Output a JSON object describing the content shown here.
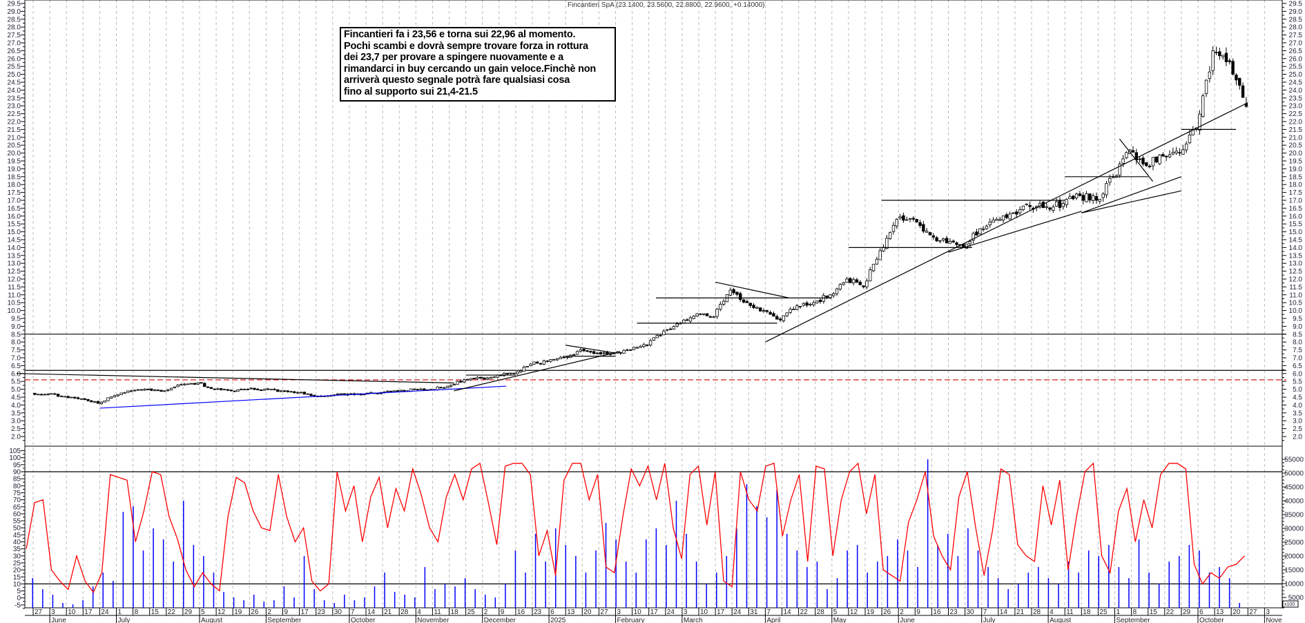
{
  "chart_data": [
    {
      "type": "candlestick",
      "title": "Fincantieri SpA (23.1400, 23.5600, 22.8800, 22.9600, +0.14000)",
      "ylim": [
        2.0,
        29.5
      ],
      "y_tick_step": 0.5,
      "grid": "vertical dashed",
      "weekly_close": [
        4.7,
        4.55,
        4.4,
        4.1,
        4.6,
        4.9,
        5.0,
        4.9,
        5.3,
        5.4,
        5.0,
        4.9,
        5.0,
        5.0,
        4.9,
        4.8,
        4.55,
        4.6,
        4.7,
        4.7,
        4.8,
        4.9,
        5.0,
        5.0,
        5.2,
        5.6,
        5.7,
        5.9,
        6.0,
        6.6,
        6.8,
        7.0,
        7.5,
        7.3,
        7.3,
        7.5,
        7.8,
        8.7,
        9.2,
        9.8,
        9.6,
        11.3,
        10.5,
        10.0,
        9.4,
        10.3,
        10.5,
        11.0,
        12.0,
        11.5,
        13.8,
        15.8,
        15.8,
        14.8,
        14.3,
        14.0,
        15.2,
        15.8,
        16.2,
        16.6,
        16.6,
        16.8,
        17.3,
        17.0,
        18.5,
        20.2,
        19.2,
        19.8,
        20.0,
        21.6,
        26.5,
        25.8,
        22.96
      ],
      "last": {
        "open": 23.14,
        "high": 23.56,
        "low": 22.88,
        "close": 22.96,
        "change": 0.14
      },
      "levels": [
        {
          "price": 8.5,
          "color": "#000000",
          "style": "solid"
        },
        {
          "price": 6.2,
          "color": "#000000",
          "style": "solid"
        },
        {
          "price": 5.6,
          "color": "#cc0000",
          "style": "dashed"
        }
      ],
      "trendlines": [
        {
          "from": [
            "2024-06-24",
            3.8
          ],
          "to": [
            "2024-12-12",
            5.2
          ],
          "color": "#0000ff"
        },
        {
          "from": [
            "2024-05-20",
            6.0
          ],
          "to": [
            "2024-11-20",
            5.4
          ],
          "color": "#000000"
        },
        {
          "from": [
            "2024-11-20",
            4.9
          ],
          "to": [
            "2025-02-05",
            7.4
          ],
          "color": "#000000"
        },
        {
          "from": [
            "2024-11-25",
            5.9
          ],
          "to": [
            "2024-12-16",
            5.9
          ],
          "color": "#000000"
        },
        {
          "from": [
            "2025-01-13",
            7.8
          ],
          "to": [
            "2025-02-03",
            7.3
          ],
          "color": "#000000"
        },
        {
          "from": [
            "2025-01-13",
            7.1
          ],
          "to": [
            "2025-02-03",
            7.1
          ],
          "color": "#000000"
        },
        {
          "from": [
            "2025-02-12",
            9.2
          ],
          "to": [
            "2025-04-12",
            9.2
          ],
          "color": "#000000"
        },
        {
          "from": [
            "2025-02-20",
            10.8
          ],
          "to": [
            "2025-05-05",
            10.8
          ],
          "color": "#000000"
        },
        {
          "from": [
            "2025-03-17",
            11.8
          ],
          "to": [
            "2025-04-17",
            10.8
          ],
          "color": "#000000"
        },
        {
          "from": [
            "2025-04-07",
            8.0
          ],
          "to": [
            "2025-10-27",
            23.2
          ],
          "color": "#000000"
        },
        {
          "from": [
            "2025-05-12",
            14.0
          ],
          "to": [
            "2025-07-03",
            14.0
          ],
          "color": "#000000"
        },
        {
          "from": [
            "2025-05-26",
            17.0
          ],
          "to": [
            "2025-08-11",
            17.0
          ],
          "color": "#000000"
        },
        {
          "from": [
            "2025-06-23",
            13.7
          ],
          "to": [
            "2025-08-18",
            16.3
          ],
          "color": "#000000"
        },
        {
          "from": [
            "2025-08-18",
            16.2
          ],
          "to": [
            "2025-09-29",
            17.6
          ],
          "color": "#000000"
        },
        {
          "from": [
            "2025-08-18",
            16.2
          ],
          "to": [
            "2025-09-29",
            18.5
          ],
          "color": "#000000"
        },
        {
          "from": [
            "2025-08-11",
            18.5
          ],
          "to": [
            "2025-09-15",
            18.5
          ],
          "color": "#000000"
        },
        {
          "from": [
            "2025-09-03",
            20.9
          ],
          "to": [
            "2025-09-17",
            18.2
          ],
          "color": "#000000"
        },
        {
          "from": [
            "2025-09-29",
            21.5
          ],
          "to": [
            "2025-10-22",
            21.5
          ],
          "color": "#000000"
        }
      ]
    },
    {
      "type": "line+bar",
      "oscillator": {
        "color": "#ff0000",
        "ylim": [
          -5,
          105
        ],
        "y_tick_step": 5,
        "levels": [
          90,
          10
        ],
        "values": [
          35,
          68,
          70,
          20,
          12,
          6,
          30,
          12,
          4,
          18,
          88,
          86,
          84,
          40,
          62,
          90,
          88,
          58,
          42,
          20,
          8,
          18,
          10,
          5,
          58,
          86,
          82,
          62,
          50,
          48,
          88,
          58,
          40,
          50,
          12,
          5,
          10,
          90,
          62,
          80,
          40,
          72,
          86,
          50,
          78,
          62,
          92,
          74,
          50,
          40,
          72,
          88,
          70,
          92,
          96,
          68,
          38,
          94,
          96,
          96,
          88,
          30,
          48,
          16,
          84,
          96,
          96,
          70,
          88,
          22,
          18,
          58,
          92,
          80,
          94,
          70,
          96,
          50,
          28,
          88,
          94,
          52,
          90,
          12,
          8,
          90,
          70,
          62,
          94,
          96,
          44,
          70,
          88,
          26,
          94,
          92,
          30,
          70,
          90,
          96,
          60,
          88,
          20,
          16,
          12,
          54,
          70,
          90,
          44,
          30,
          20,
          72,
          90,
          50,
          16,
          48,
          92,
          88,
          38,
          30,
          26,
          80,
          52,
          84,
          20,
          58,
          90,
          96,
          30,
          18,
          62,
          78,
          40,
          70,
          50,
          88,
          96,
          96,
          92,
          24,
          10,
          18,
          14,
          22,
          24,
          30
        ]
      },
      "volume": {
        "color": "#0000ff",
        "ylim": [
          5000,
          55000
        ],
        "y_tick_step": 5000,
        "unit_label": "x100",
        "values": [
          12000,
          8000,
          6000,
          3000,
          2500,
          4000,
          9000,
          14000,
          11000,
          36000,
          38000,
          22000,
          30000,
          26000,
          18000,
          40000,
          24000,
          20000,
          14000,
          7000,
          5000,
          4000,
          6000,
          3500,
          4000,
          9000,
          5000,
          20000,
          8000,
          4000,
          3000,
          6000,
          4000,
          5000,
          9000,
          14000,
          7000,
          6000,
          5000,
          16000,
          8000,
          10000,
          9000,
          12000,
          8000,
          6000,
          5000,
          10000,
          22000,
          14000,
          28000,
          18000,
          30000,
          24000,
          20000,
          14000,
          22000,
          32000,
          26000,
          18000,
          14000,
          26000,
          30000,
          24000,
          40000,
          28000,
          18000,
          10000,
          14000,
          20000,
          30000,
          46000,
          38000,
          34000,
          44000,
          28000,
          22000,
          16000,
          18000,
          8000,
          12000,
          22000,
          24000,
          14000,
          18000,
          20000,
          26000,
          22000,
          16000,
          55000,
          24000,
          28000,
          20000,
          30000,
          22000,
          16000,
          12000,
          8000,
          10000,
          14000,
          16000,
          12000,
          10000,
          18000,
          14000,
          22000,
          20000,
          24000,
          16000,
          12000,
          26000,
          14000,
          10000,
          18000,
          20000,
          24000,
          22000,
          14000,
          16000,
          12000,
          3000
        ]
      }
    }
  ],
  "x_axis": {
    "ticks": [
      "27",
      "3",
      "10",
      "17",
      "24",
      "1",
      "8",
      "15",
      "22",
      "29",
      "5",
      "12",
      "19",
      "26",
      "2",
      "9",
      "17",
      "23",
      "30",
      "7",
      "14",
      "21",
      "28",
      "4",
      "11",
      "18",
      "25",
      "2",
      "9",
      "16",
      "23",
      "6",
      "13",
      "20",
      "27",
      "3",
      "10",
      "17",
      "24",
      "3",
      "10",
      "17",
      "24",
      "31",
      "7",
      "14",
      "22",
      "28",
      "5",
      "12",
      "19",
      "26",
      "2",
      "9",
      "16",
      "23",
      "30",
      "7",
      "14",
      "21",
      "28",
      "4",
      "11",
      "18",
      "25",
      "1",
      "8",
      "15",
      "22",
      "29",
      "6",
      "13",
      "20",
      "27",
      "3"
    ],
    "months": [
      {
        "label": "June",
        "tick": 1
      },
      {
        "label": "July",
        "tick": 5
      },
      {
        "label": "August",
        "tick": 10
      },
      {
        "label": "September",
        "tick": 14
      },
      {
        "label": "October",
        "tick": 19
      },
      {
        "label": "November",
        "tick": 23
      },
      {
        "label": "December",
        "tick": 27
      },
      {
        "label": "2025",
        "tick": 31
      },
      {
        "label": "February",
        "tick": 35
      },
      {
        "label": "March",
        "tick": 39
      },
      {
        "label": "April",
        "tick": 44
      },
      {
        "label": "May",
        "tick": 48
      },
      {
        "label": "June",
        "tick": 52
      },
      {
        "label": "July",
        "tick": 57
      },
      {
        "label": "August",
        "tick": 61
      },
      {
        "label": "September",
        "tick": 65
      },
      {
        "label": "October",
        "tick": 70
      },
      {
        "label": "Nove",
        "tick": 74
      }
    ]
  },
  "header": {
    "title": "Fincantieri SpA (23.1400, 23.5600, 22.8800, 22.9600, +0.14000)"
  },
  "note": {
    "lines": [
      "Fincantieri fa i 23,56 e torna sui 22,96 al momento.",
      "Pochi scambi e dovrà sempre trovare forza in rottura",
      "dei 23,7 per provare a spingere nuovamente e a",
      "rimandarci in buy cercando un gain veloce.Finchè non",
      "arriverà questo segnale potrà fare qualsiasi cosa",
      "fino al supporto sui 21,4-21.5"
    ]
  }
}
